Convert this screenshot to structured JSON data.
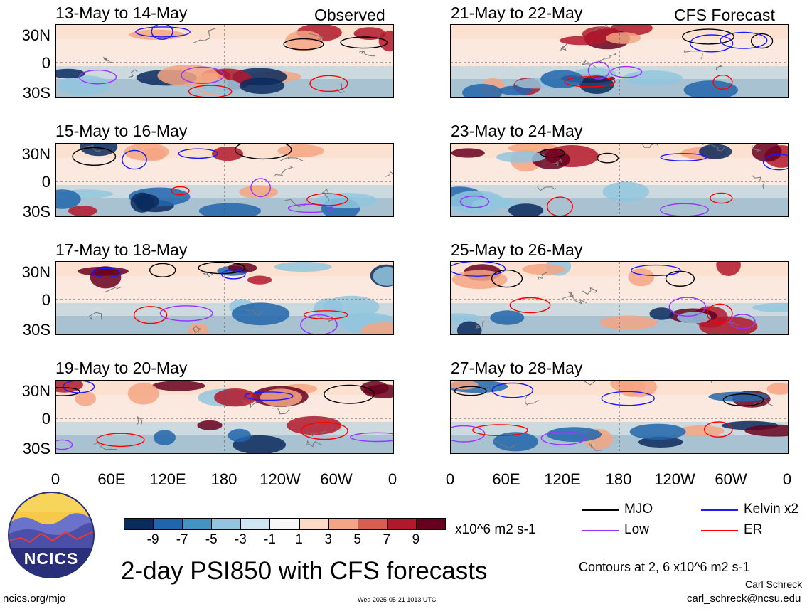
{
  "chart_data": {
    "type": "heatmap",
    "title": "2-day PSI850 with CFS forecasts",
    "units": "x10^6 m2 s-1",
    "x_tick_labels": [
      "0",
      "60E",
      "120E",
      "180",
      "120W",
      "60W",
      "0"
    ],
    "y_tick_labels": [
      "30N",
      "0",
      "30S"
    ],
    "colorbar": {
      "labels": [
        "-9",
        "-7",
        "-5",
        "-3",
        "-1",
        "1",
        "3",
        "5",
        "7",
        "9"
      ],
      "colors": [
        "#0b2a5e",
        "#2166ac",
        "#4393c3",
        "#92c5de",
        "#d1e5f0",
        "#f7f7f7",
        "#fddbc7",
        "#f4a582",
        "#d6604d",
        "#b2182b",
        "#67001f"
      ]
    },
    "contour_note": "Contours at 2, 6 x10^6 m2 s-1",
    "legend": [
      {
        "name": "MJO",
        "color": "#000000"
      },
      {
        "name": "Kelvin x2",
        "color": "#1a1aff"
      },
      {
        "name": "Low",
        "color": "#9933ff"
      },
      {
        "name": "ER",
        "color": "#ff0000"
      }
    ],
    "panels": [
      {
        "title": "13-May to 14-May",
        "label": "Observed"
      },
      {
        "title": "21-May to 22-May",
        "label": "CFS Forecast"
      },
      {
        "title": "15-May to 16-May",
        "label": ""
      },
      {
        "title": "23-May to 24-May",
        "label": ""
      },
      {
        "title": "17-May to 18-May",
        "label": ""
      },
      {
        "title": "25-May to 26-May",
        "label": ""
      },
      {
        "title": "19-May to 20-May",
        "label": ""
      },
      {
        "title": "27-May to 28-May",
        "label": ""
      }
    ]
  },
  "logo": {
    "text": "NCICS"
  },
  "footer": {
    "website": "ncics.org/mjo",
    "timestamp": "Wed 2025-05-21 1013 UTC",
    "author": "Carl Schreck",
    "email": "carl_schreck@ncsu.edu"
  }
}
